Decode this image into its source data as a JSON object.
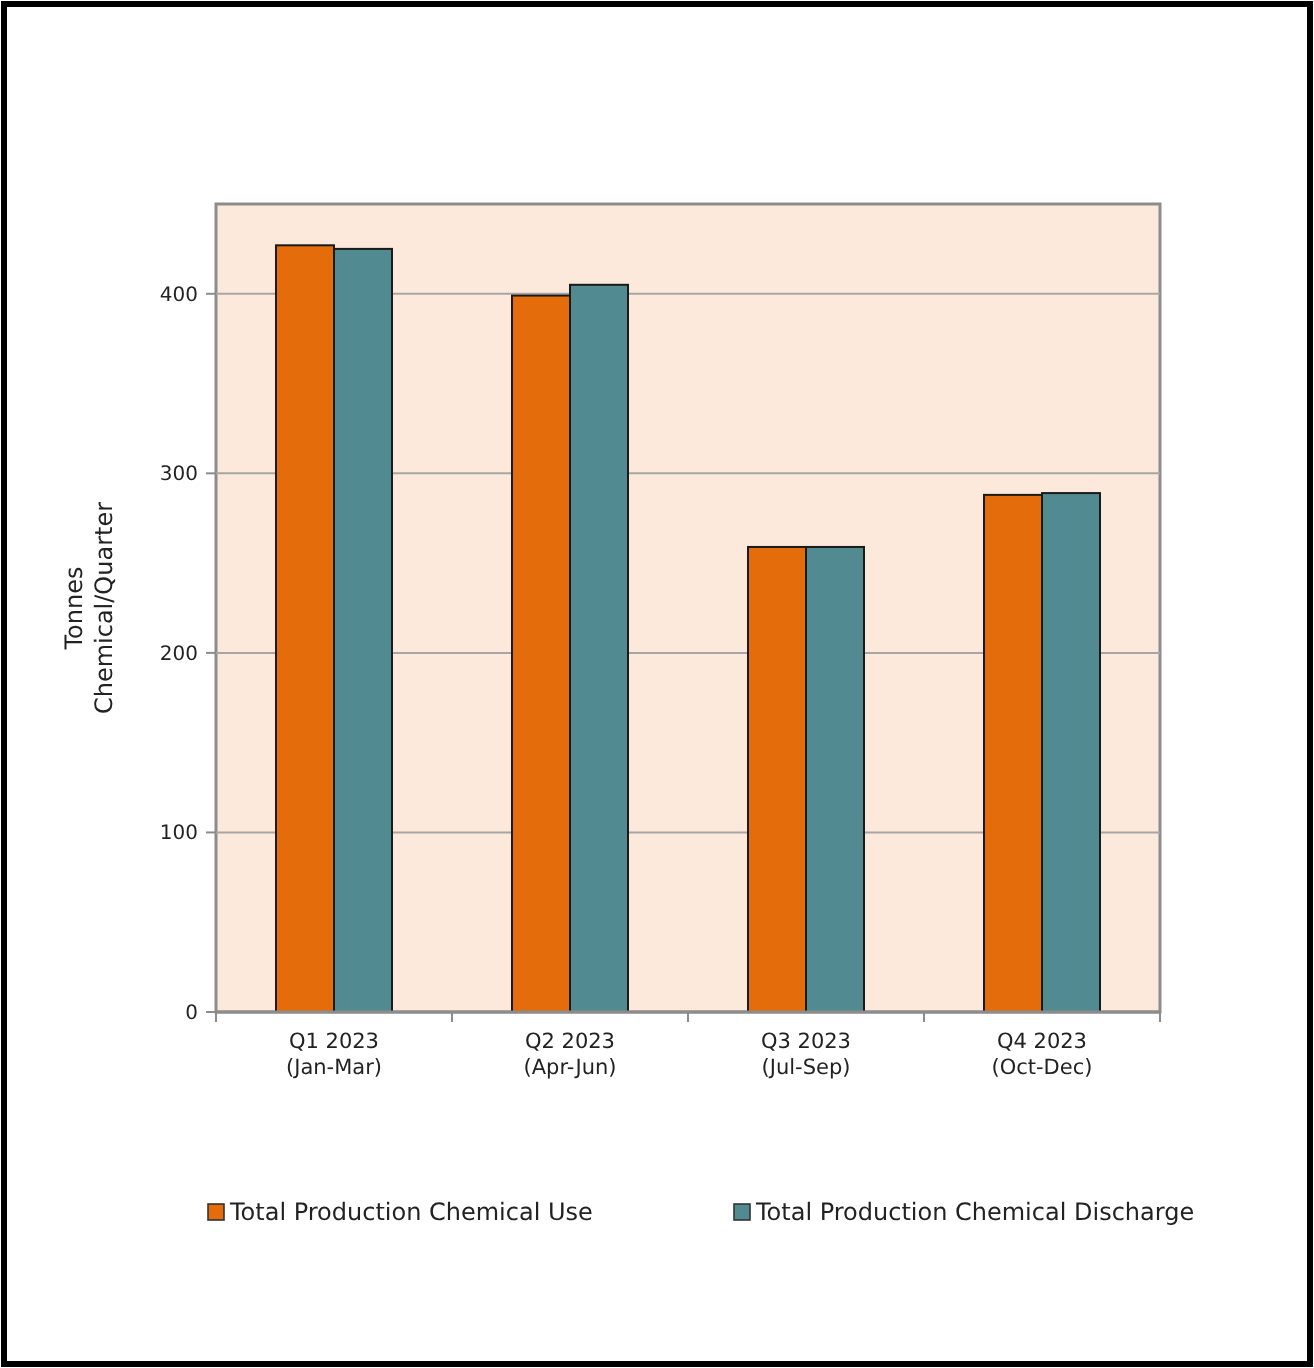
{
  "chart_data": {
    "type": "bar",
    "ylabel": "Tonnes\nChemical/Quarter",
    "categories": [
      "Q1 2023\n(Jan-Mar)",
      "Q2 2023\n(Apr-Jun)",
      "Q3 2023\n(Jul-Sep)",
      "Q4 2023\n(Oct-Dec)"
    ],
    "series": [
      {
        "name": "Total Production Chemical Use",
        "color": "#e46c0a",
        "values": [
          427,
          399,
          259,
          288
        ]
      },
      {
        "name": "Total Production Chemical Discharge",
        "color": "#528a91",
        "values": [
          425,
          405,
          259,
          289
        ]
      }
    ],
    "ylim": [
      0,
      450
    ],
    "yticks": [
      0,
      100,
      200,
      300,
      400
    ],
    "grid": "y",
    "legend": "bottom"
  }
}
